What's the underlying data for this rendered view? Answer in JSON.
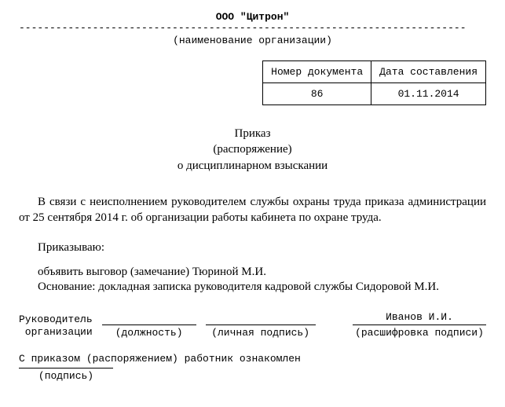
{
  "org": {
    "name": "ООО \"Цитрон\"",
    "label": "(наименование организации)"
  },
  "info_table": {
    "col1_header": "Номер документа",
    "col2_header": "Дата составления",
    "doc_number": "86",
    "doc_date": "01.11.2014"
  },
  "heading": {
    "line1": "Приказ",
    "line2": "(распоряжение)",
    "line3": "о дисциплинарном взыскании"
  },
  "body": {
    "paragraph": "В связи с неисполнением руководителем службы охраны труда приказа администрации от 25 сентября 2014 г. об организации работы кабинета по охране труда.",
    "order_label": "Приказываю:",
    "declare": "объявить выговор (замечание) Тюриной М.И.",
    "basis": "Основание: докладная записка руководителя кадровой службы Сидоровой М.И."
  },
  "signatures": {
    "leader_label_line1": "Руководитель",
    "leader_label_line2": " организации",
    "position_caption": "(должность)",
    "signature_caption": "(личная подпись)",
    "decoding_value": "Иванов И.И.",
    "decoding_caption": "(расшифровка подписи)"
  },
  "ack": {
    "text": "С приказом (распоряжением) работник ознакомлен",
    "caption": "(подпись)"
  }
}
